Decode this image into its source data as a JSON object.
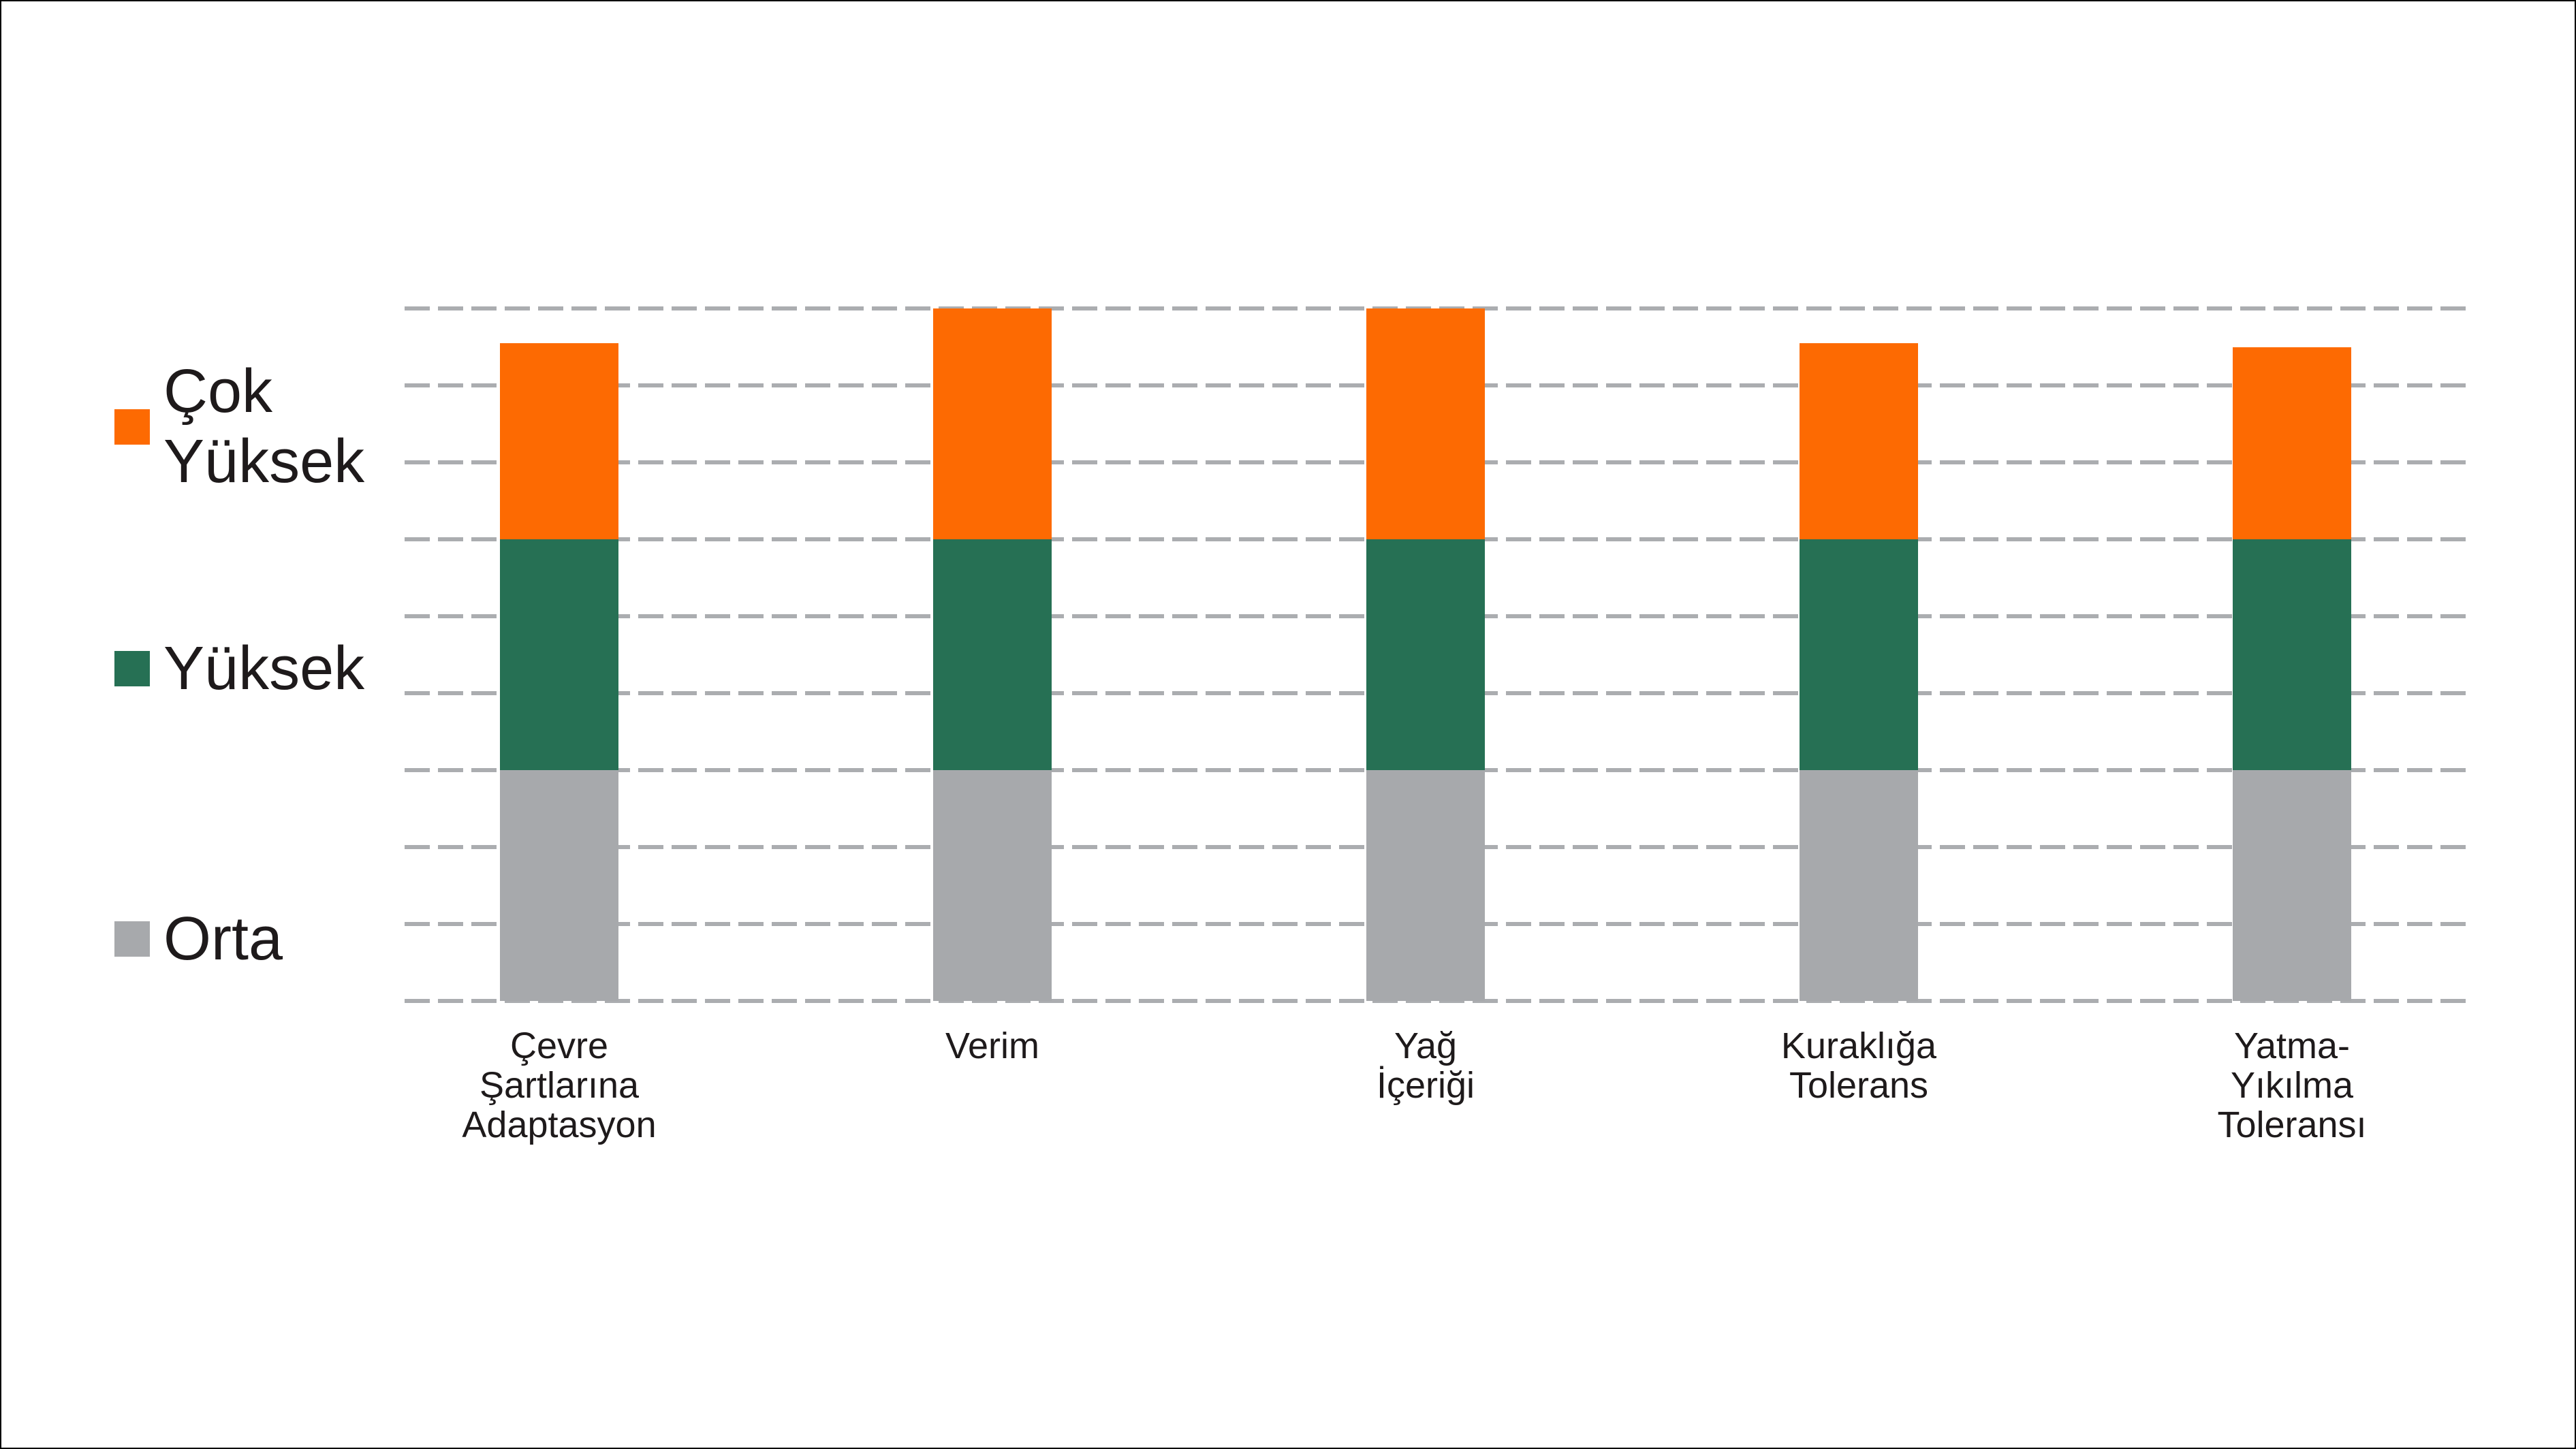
{
  "chart_data": {
    "type": "bar",
    "stacked": true,
    "title": "",
    "xlabel": "",
    "ylabel": "",
    "categories": [
      "Çevre Şartlarına Adaptasyon",
      "Verim",
      "Yağ İçeriği",
      "Kuraklığa Tolerans",
      "Yatma-Yıkılma Toleransı"
    ],
    "category_lines": [
      [
        "Çevre",
        "Şartlarına",
        "Adaptasyon"
      ],
      [
        "Verim"
      ],
      [
        "Yağ",
        "İçeriği"
      ],
      [
        "Kuraklığa",
        "Tolerans"
      ],
      [
        "Yatma-",
        "Yıkılma",
        "Toleransı"
      ]
    ],
    "series": [
      {
        "name": "Orta",
        "color": "#A7A9AC",
        "values": [
          3,
          3,
          3,
          3,
          3
        ]
      },
      {
        "name": "Yüksek",
        "color": "#267054",
        "values": [
          3,
          3,
          3,
          3,
          3
        ]
      },
      {
        "name": "Çok Yüksek",
        "color": "#FD6A02",
        "values": [
          2.55,
          3,
          3,
          2.55,
          2.5
        ]
      }
    ],
    "bar_totals": [
      8.55,
      9,
      9,
      8.55,
      8.5
    ],
    "ylim": [
      0,
      9
    ],
    "gridline_step": 1,
    "gridline_count": 10,
    "grid_style": "dashed",
    "grid_on": true,
    "legend_position": "left",
    "axis_tick_labels_shown": false
  },
  "legend": {
    "items": [
      {
        "label": "Çok Yüksek",
        "lines": [
          "Çok",
          "Yüksek"
        ],
        "color": "#FD6A02"
      },
      {
        "label": "Yüksek",
        "lines": [
          "Yüksek"
        ],
        "color": "#267054"
      },
      {
        "label": "Orta",
        "lines": [
          "Orta"
        ],
        "color": "#A7A9AC"
      }
    ]
  },
  "colors": {
    "gridline": "#ABADB0",
    "text": "#1E1A1B",
    "background": "#FFFFFF",
    "border": "#000000"
  }
}
